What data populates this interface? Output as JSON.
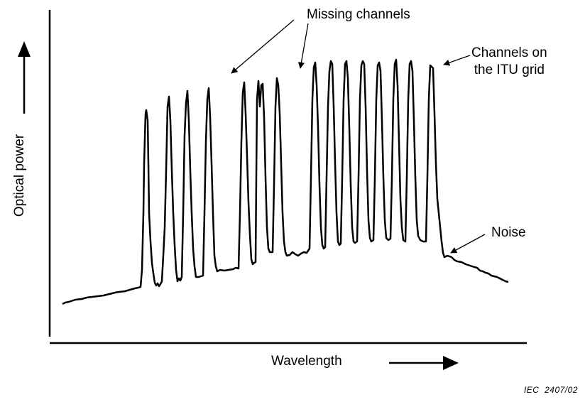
{
  "labels": {
    "missing": "Missing channels",
    "channels_line1": "Channels on",
    "channels_line2": "the ITU grid",
    "noise": "Noise",
    "y_axis": "Optical power",
    "x_axis": "Wavelength",
    "reference": "IEC  2407/02"
  },
  "colors": {
    "ink": "#000000",
    "background": "#ffffff"
  },
  "icons": [
    "up-arrow-icon",
    "right-arrow-icon"
  ]
}
